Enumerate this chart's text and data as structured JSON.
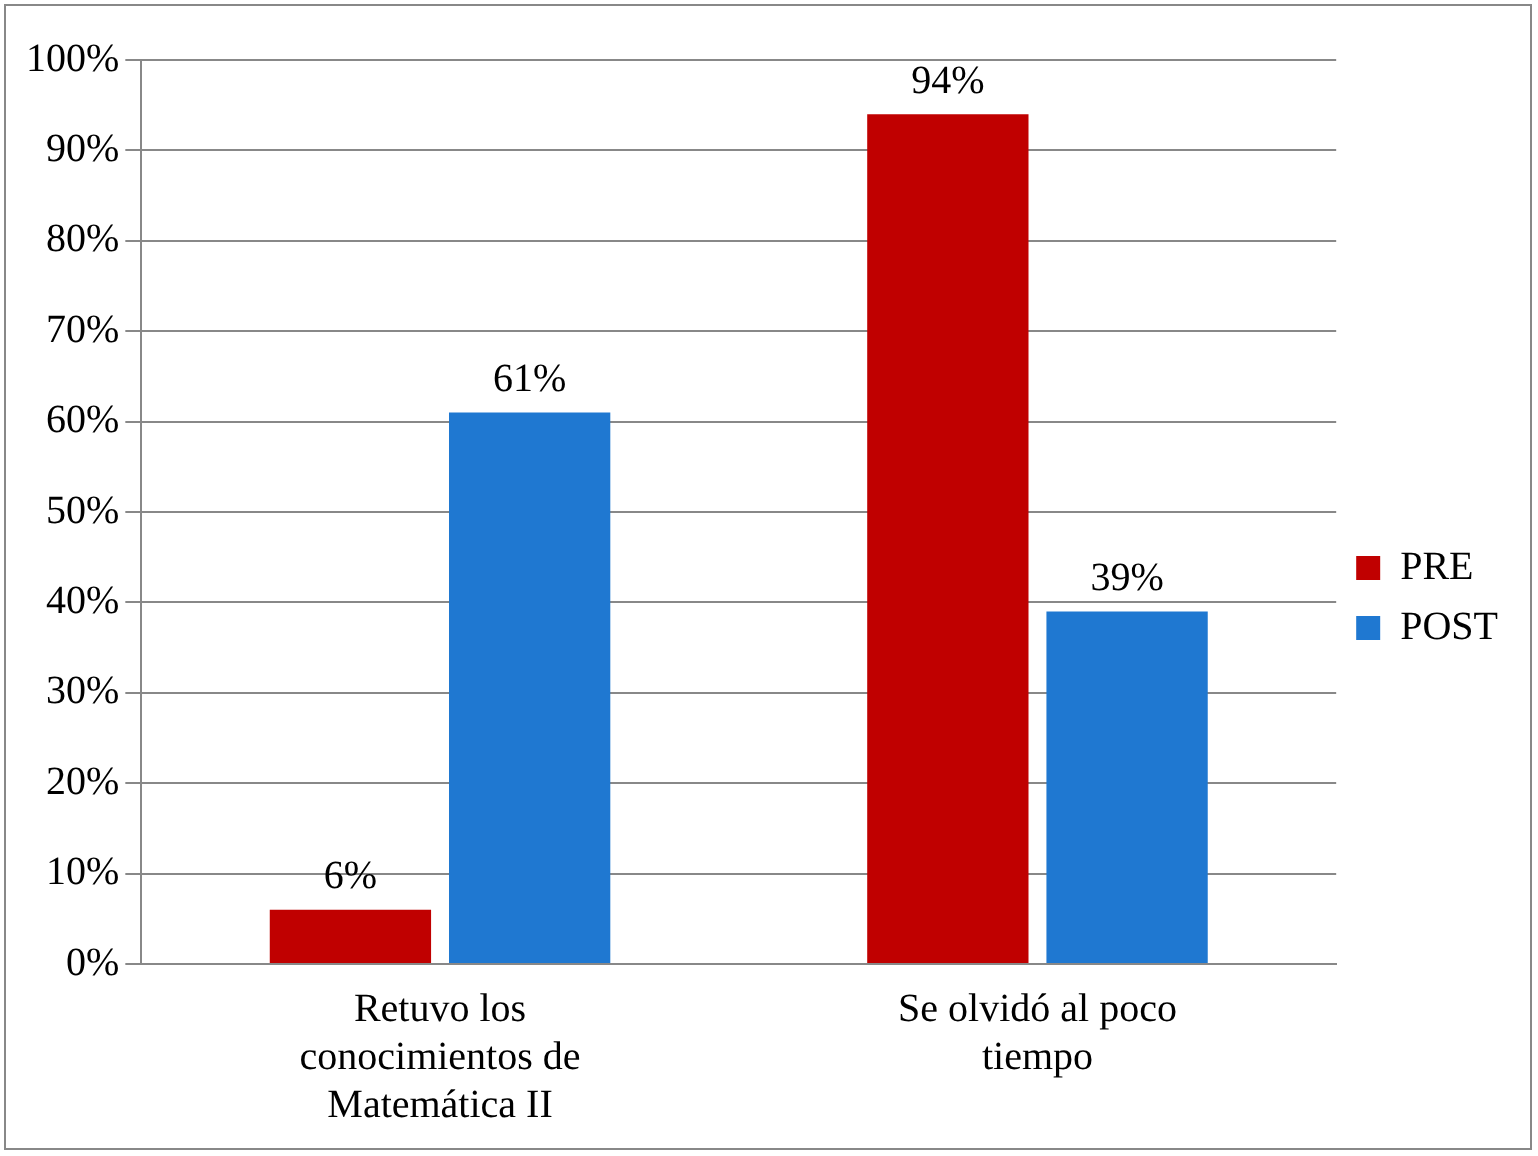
{
  "chart_data": {
    "type": "bar",
    "categories": [
      "Retuvo los conocimientos de Matemática II",
      "Se olvidó al poco tiempo"
    ],
    "series": [
      {
        "name": "PRE",
        "color": "#c00000",
        "values": [
          6,
          94
        ],
        "value_labels": [
          "6%",
          "94%"
        ]
      },
      {
        "name": "POST",
        "color": "#1f78d1",
        "values": [
          61,
          39
        ],
        "value_labels": [
          "61%",
          "39%"
        ]
      }
    ],
    "ylim": [
      0,
      100
    ],
    "yticks": [
      {
        "value": 0,
        "label": "0%"
      },
      {
        "value": 10,
        "label": "10%"
      },
      {
        "value": 20,
        "label": "20%"
      },
      {
        "value": 30,
        "label": "30%"
      },
      {
        "value": 40,
        "label": "40%"
      },
      {
        "value": 50,
        "label": "50%"
      },
      {
        "value": 60,
        "label": "60%"
      },
      {
        "value": 70,
        "label": "70%"
      },
      {
        "value": 80,
        "label": "80%"
      },
      {
        "value": 90,
        "label": "90%"
      },
      {
        "value": 100,
        "label": "100%"
      }
    ],
    "grid": "y",
    "legend": "right"
  }
}
